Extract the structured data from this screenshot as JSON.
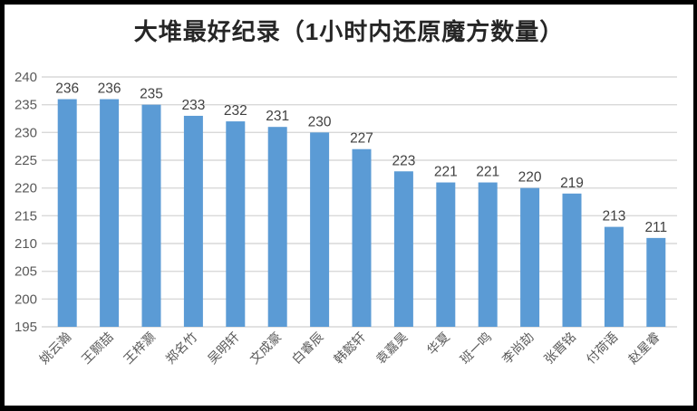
{
  "chart_data": {
    "type": "bar",
    "title": "大堆最好纪录（1小时内还原魔方数量）",
    "categories": [
      "姚云瀚",
      "王颢喆",
      "王梓灏",
      "郑名竹",
      "吴明轩",
      "文成豪",
      "白睿辰",
      "韩懿轩",
      "袁嘉昊",
      "华夏",
      "班一鸣",
      "李尚劼",
      "张晋铭",
      "付荷语",
      "赵星睿"
    ],
    "values": [
      236,
      236,
      235,
      233,
      232,
      231,
      230,
      227,
      223,
      221,
      221,
      220,
      219,
      213,
      211
    ],
    "xlabel": "",
    "ylabel": "",
    "ylim": [
      195,
      240
    ],
    "ytick_step": 5,
    "yticks": [
      195,
      200,
      205,
      210,
      215,
      220,
      225,
      230,
      235,
      240
    ],
    "grid": true,
    "legend_position": "none",
    "bar_color": "#5B9BD5",
    "gridline_color": "#D9D9D9",
    "axis_label_color": "#595959",
    "data_label_color": "#404040",
    "title_color": "#262626",
    "frame_color": "#000000",
    "background_color": "#FFFFFF"
  }
}
